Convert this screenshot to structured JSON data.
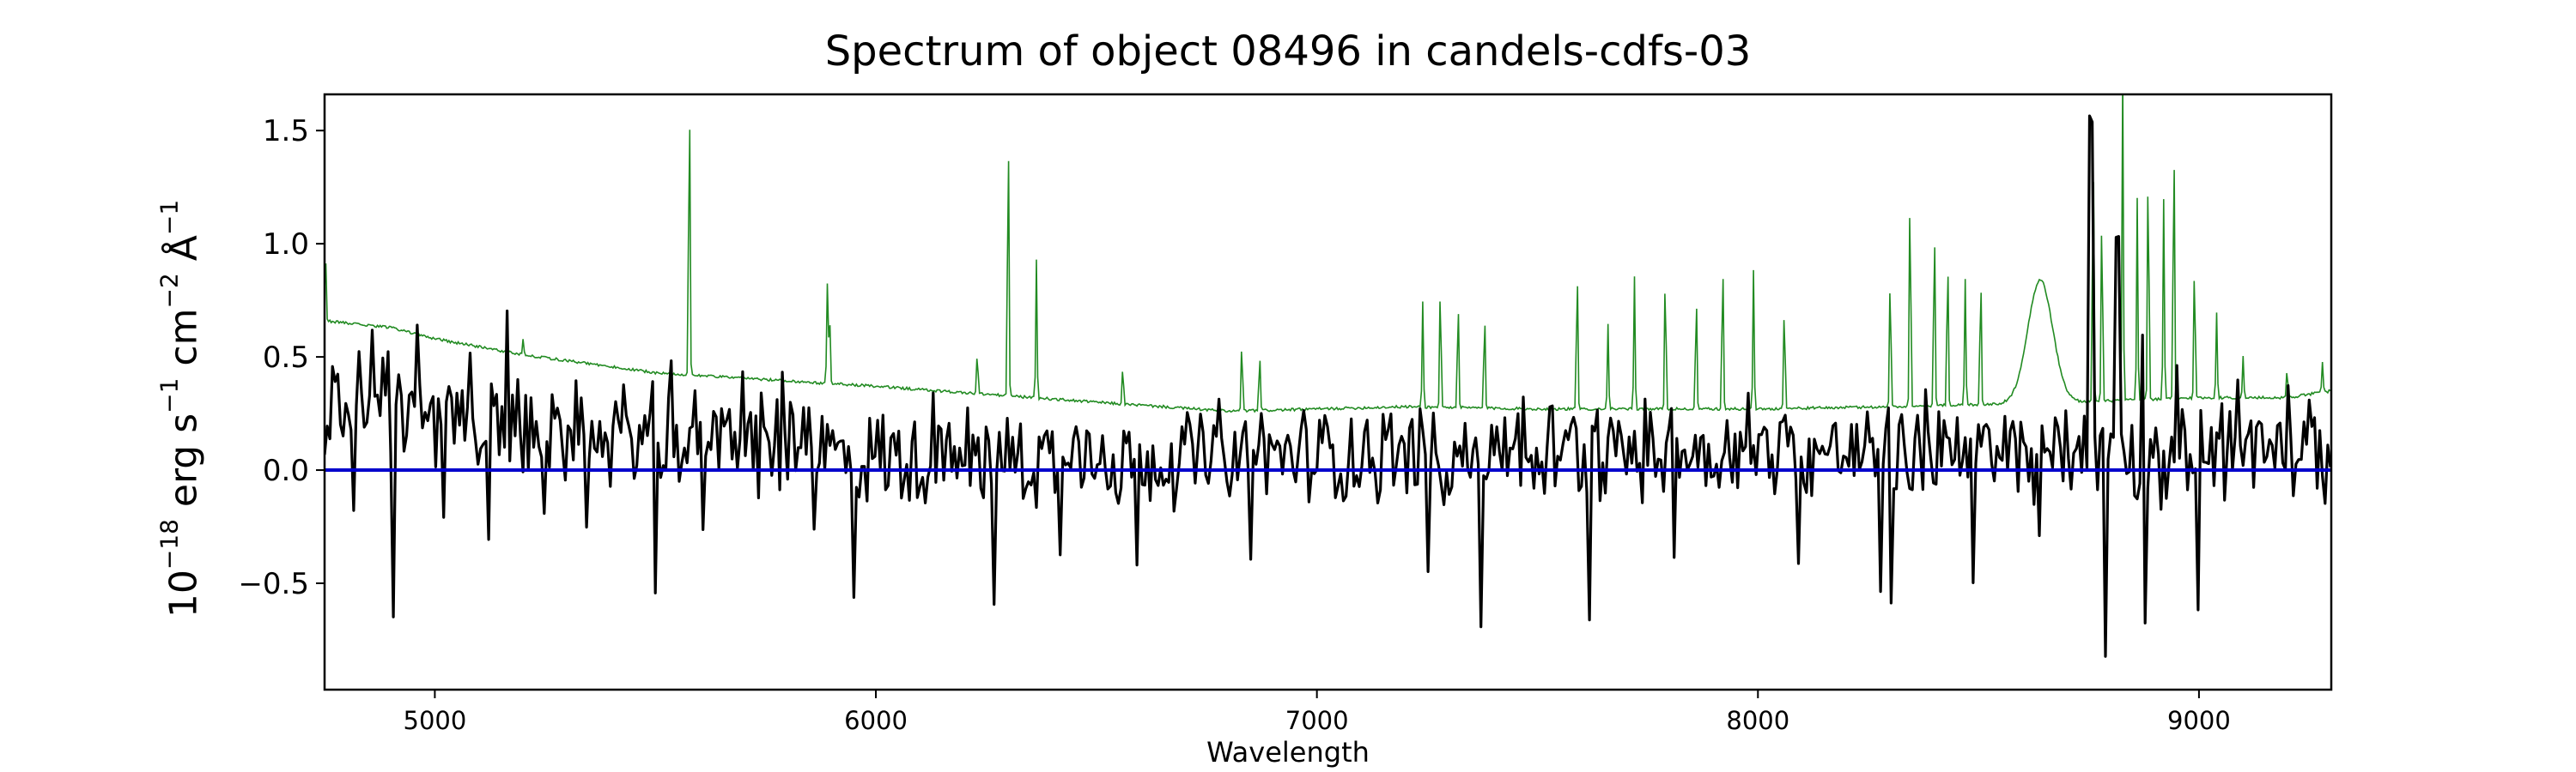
{
  "chart_data": {
    "type": "line",
    "title": "Spectrum of object 08496 in candels-cdfs-03",
    "xlabel": "Wavelength",
    "ylabel": {
      "base": "10",
      "exp": "−18",
      "unit_erg": " erg s",
      "exp_s": "−1",
      "unit_cm": " cm",
      "exp_cm": "−2",
      "unit_ang": " Å",
      "exp_ang": "−1"
    },
    "xlim": [
      4750,
      9300
    ],
    "ylim": [
      -0.97,
      1.66
    ],
    "xticks": [
      5000,
      6000,
      7000,
      8000,
      9000
    ],
    "yticks": [
      -0.5,
      0.0,
      0.5,
      1.0,
      1.5
    ],
    "ytick_labels": [
      "−0.5",
      "0.0",
      "0.5",
      "1.0",
      "1.5"
    ],
    "grid": false,
    "colors": {
      "flux": "#000000",
      "error": "#228b22",
      "zero": "#0000cc",
      "axes": "#000000"
    },
    "series": [
      {
        "role": "flux",
        "base_points": [
          [
            4750,
            0.25
          ],
          [
            4800,
            0.35
          ],
          [
            4900,
            0.3
          ],
          [
            5000,
            0.2
          ],
          [
            5200,
            0.17
          ],
          [
            5500,
            0.15
          ],
          [
            5800,
            0.1
          ],
          [
            6000,
            0.05
          ],
          [
            6500,
            0.05
          ],
          [
            7000,
            0.07
          ],
          [
            7500,
            0.08
          ],
          [
            8000,
            0.08
          ],
          [
            8500,
            0.07
          ],
          [
            9000,
            0.08
          ],
          [
            9300,
            0.07
          ]
        ],
        "amplitude": 0.2,
        "features": [
          {
            "x": 4770,
            "y": 0.45
          },
          {
            "x": 4815,
            "y": -0.18
          },
          {
            "x": 4860,
            "y": 0.6
          },
          {
            "x": 4905,
            "y": -0.63
          },
          {
            "x": 4960,
            "y": 0.64
          },
          {
            "x": 5020,
            "y": -0.2
          },
          {
            "x": 5080,
            "y": 0.53
          },
          {
            "x": 5120,
            "y": -0.3
          },
          {
            "x": 5165,
            "y": 0.7
          },
          {
            "x": 5250,
            "y": -0.2
          },
          {
            "x": 5345,
            "y": -0.25
          },
          {
            "x": 5500,
            "y": -0.53
          },
          {
            "x": 5535,
            "y": 0.5
          },
          {
            "x": 5610,
            "y": -0.28
          },
          {
            "x": 5700,
            "y": 0.42
          },
          {
            "x": 5790,
            "y": 0.44
          },
          {
            "x": 5860,
            "y": -0.28
          },
          {
            "x": 5950,
            "y": -0.56
          },
          {
            "x": 6130,
            "y": 0.34
          },
          {
            "x": 6270,
            "y": -0.58
          },
          {
            "x": 6420,
            "y": -0.37
          },
          {
            "x": 6590,
            "y": -0.42
          },
          {
            "x": 6780,
            "y": 0.3
          },
          {
            "x": 6850,
            "y": -0.38
          },
          {
            "x": 7250,
            "y": -0.44
          },
          {
            "x": 7370,
            "y": -0.7
          },
          {
            "x": 7470,
            "y": 0.34
          },
          {
            "x": 7620,
            "y": -0.66
          },
          {
            "x": 7810,
            "y": -0.37
          },
          {
            "x": 7980,
            "y": 0.35
          },
          {
            "x": 8090,
            "y": -0.4
          },
          {
            "x": 8280,
            "y": -0.52
          },
          {
            "x": 8300,
            "y": -0.58
          },
          {
            "x": 8380,
            "y": 0.36
          },
          {
            "x": 8490,
            "y": -0.48
          },
          {
            "x": 8640,
            "y": -0.27
          },
          {
            "x": 8755,
            "y": 1.55
          },
          {
            "x": 8790,
            "y": -0.83
          },
          {
            "x": 8815,
            "y": 1.02
          },
          {
            "x": 8870,
            "y": 0.58
          },
          {
            "x": 8880,
            "y": -0.69
          },
          {
            "x": 8950,
            "y": 0.45
          },
          {
            "x": 9000,
            "y": -0.6
          },
          {
            "x": 9050,
            "y": 0.28
          },
          {
            "x": 9090,
            "y": 0.4
          },
          {
            "x": 9200,
            "y": 0.37
          }
        ]
      },
      {
        "role": "error",
        "continuum": [
          [
            4750,
            0.66
          ],
          [
            4900,
            0.63
          ],
          [
            5000,
            0.58
          ],
          [
            5200,
            0.51
          ],
          [
            5500,
            0.43
          ],
          [
            6000,
            0.37
          ],
          [
            6500,
            0.3
          ],
          [
            6800,
            0.26
          ],
          [
            7000,
            0.27
          ],
          [
            7200,
            0.28
          ],
          [
            7500,
            0.27
          ],
          [
            8000,
            0.27
          ],
          [
            8300,
            0.28
          ],
          [
            8700,
            0.3
          ],
          [
            9000,
            0.32
          ],
          [
            9200,
            0.32
          ],
          [
            9300,
            0.35
          ]
        ],
        "lines": [
          {
            "x": 4752,
            "y": 0.97
          },
          {
            "x": 5200,
            "y": 0.58
          },
          {
            "x": 5577,
            "y": 1.75
          },
          {
            "x": 5890,
            "y": 0.82
          },
          {
            "x": 5895,
            "y": 0.7
          },
          {
            "x": 6230,
            "y": 0.53
          },
          {
            "x": 6300,
            "y": 1.6
          },
          {
            "x": 6364,
            "y": 0.93
          },
          {
            "x": 6560,
            "y": 0.46
          },
          {
            "x": 6830,
            "y": 0.58
          },
          {
            "x": 6870,
            "y": 0.53
          },
          {
            "x": 7240,
            "y": 0.75
          },
          {
            "x": 7280,
            "y": 0.85
          },
          {
            "x": 7320,
            "y": 0.78
          },
          {
            "x": 7380,
            "y": 0.72
          },
          {
            "x": 7590,
            "y": 0.93
          },
          {
            "x": 7660,
            "y": 0.65
          },
          {
            "x": 7720,
            "y": 0.85
          },
          {
            "x": 7790,
            "y": 0.9
          },
          {
            "x": 7860,
            "y": 0.82
          },
          {
            "x": 7920,
            "y": 0.97
          },
          {
            "x": 7990,
            "y": 0.88
          },
          {
            "x": 8060,
            "y": 0.76
          },
          {
            "x": 8300,
            "y": 0.9
          },
          {
            "x": 8345,
            "y": 1.3
          },
          {
            "x": 8400,
            "y": 1.15
          },
          {
            "x": 8430,
            "y": 0.99
          },
          {
            "x": 8470,
            "y": 0.84
          },
          {
            "x": 8505,
            "y": 0.9
          },
          {
            "x": 8760,
            "y": 1.5
          },
          {
            "x": 8780,
            "y": 1.2
          },
          {
            "x": 8827,
            "y": 1.75
          },
          {
            "x": 8860,
            "y": 1.2
          },
          {
            "x": 8885,
            "y": 1.42
          },
          {
            "x": 8920,
            "y": 1.2
          },
          {
            "x": 8943,
            "y": 1.56
          },
          {
            "x": 8990,
            "y": 0.95
          },
          {
            "x": 9040,
            "y": 0.7
          },
          {
            "x": 9100,
            "y": 0.5
          },
          {
            "x": 9200,
            "y": 0.45
          },
          {
            "x": 9280,
            "y": 0.48
          }
        ],
        "bumps": [
          {
            "x": 8640,
            "y": 0.84,
            "w": 40
          }
        ]
      },
      {
        "role": "zero",
        "y": 0.0
      }
    ]
  }
}
